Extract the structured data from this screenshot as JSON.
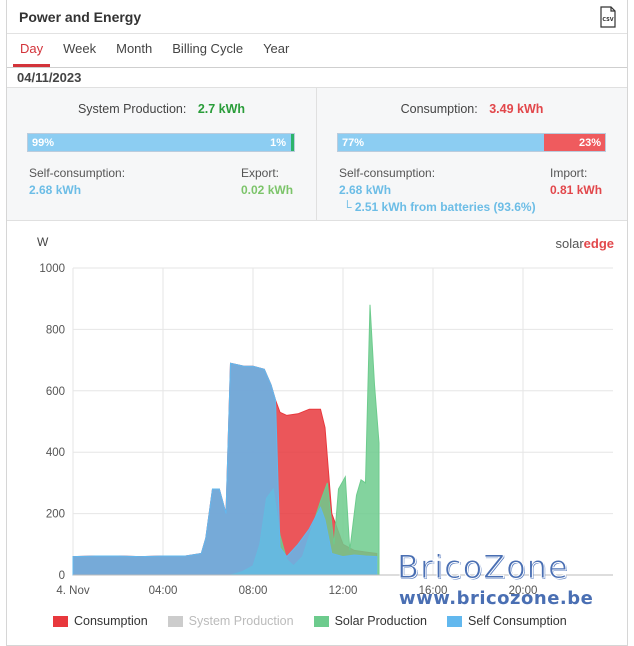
{
  "header": {
    "title": "Power and Energy",
    "csv_icon": "csv-file-icon"
  },
  "tabs": [
    {
      "label": "Day",
      "active": true
    },
    {
      "label": "Week",
      "active": false
    },
    {
      "label": "Month",
      "active": false
    },
    {
      "label": "Billing Cycle",
      "active": false
    },
    {
      "label": "Year",
      "active": false
    }
  ],
  "date": "04/11/2023",
  "production": {
    "label": "System Production:",
    "value": "2.7 kWh",
    "self_pct": "99%",
    "export_pct": "1%",
    "self_fraction": 0.99,
    "self_label": "Self-consumption:",
    "self_value": "2.68 kWh",
    "export_label": "Export:",
    "export_value": "0.02 kWh"
  },
  "consumption": {
    "label": "Consumption:",
    "value": "3.49 kWh",
    "self_pct": "77%",
    "import_pct": "23%",
    "self_fraction": 0.77,
    "self_label": "Self-consumption:",
    "self_value": "2.68 kWh",
    "battery_note": "└ 2.51 kWh from batteries (93.6%)",
    "import_label": "Import:",
    "import_value": "0.81 kWh"
  },
  "colors": {
    "production_green": "#2a9d3a",
    "consumption_red": "#e2474b",
    "self_blue": "#8ccdf2",
    "export_green": "#2db46a",
    "import_red": "#ef5b5e",
    "value_blue": "#6cbde6",
    "value_green": "#7cc46a",
    "value_red": "#e2474b"
  },
  "brand": {
    "solar": "solar",
    "edge": "edge"
  },
  "watermark": {
    "title": "BricoZone",
    "url": "www.bricozone.be"
  },
  "chart_data": {
    "type": "area",
    "ylabel": "W",
    "ylim": [
      0,
      1000
    ],
    "yticks": [
      0,
      200,
      400,
      600,
      800,
      1000
    ],
    "xticks": [
      "4. Nov",
      "04:00",
      "08:00",
      "12:00",
      "16:00",
      "20:00"
    ],
    "xtick_hours": [
      0,
      4,
      8,
      12,
      16,
      20
    ],
    "xlim_hours": [
      0,
      24
    ],
    "series": [
      {
        "name": "Consumption",
        "color": "#e8383d",
        "visible": true,
        "x": [
          0,
          1,
          2,
          3,
          4,
          5,
          5.7,
          5.9,
          6.2,
          6.5,
          6.8,
          7.0,
          7.3,
          7.6,
          8.0,
          8.5,
          8.8,
          9.0,
          9.2,
          9.5,
          10.0,
          10.5,
          11.0,
          11.2,
          11.5,
          12.0,
          12.5,
          13.0,
          13.5
        ],
        "y": [
          60,
          62,
          62,
          60,
          62,
          62,
          70,
          120,
          280,
          280,
          200,
          690,
          685,
          680,
          680,
          670,
          620,
          570,
          530,
          520,
          525,
          540,
          540,
          480,
          200,
          100,
          80,
          75,
          70
        ]
      },
      {
        "name": "System Production",
        "color": "#cccccc",
        "visible": false,
        "x": [],
        "y": []
      },
      {
        "name": "Solar Production",
        "color": "#6dcb8d",
        "visible": true,
        "x": [
          7.0,
          7.5,
          8.0,
          8.3,
          8.6,
          8.9,
          9.2,
          9.5,
          9.8,
          10.2,
          10.6,
          11.0,
          11.3,
          11.6,
          11.8,
          12.1,
          12.3,
          12.6,
          12.8,
          13.0,
          13.2,
          13.4,
          13.6
        ],
        "y": [
          0,
          10,
          30,
          100,
          250,
          280,
          130,
          50,
          30,
          60,
          150,
          240,
          300,
          100,
          280,
          320,
          80,
          260,
          310,
          300,
          880,
          620,
          430
        ]
      },
      {
        "name": "Self Consumption",
        "color": "#62b8ee",
        "visible": true,
        "x": [
          0,
          1,
          2,
          3,
          4,
          5,
          5.7,
          5.9,
          6.2,
          6.5,
          6.8,
          7.0,
          7.3,
          7.6,
          8.0,
          8.5,
          8.8,
          9.0,
          9.2,
          9.5,
          10.0,
          10.5,
          11.0,
          11.2,
          11.5,
          12.0,
          12.5,
          13.0,
          13.5
        ],
        "y": [
          60,
          62,
          62,
          60,
          62,
          62,
          70,
          120,
          280,
          280,
          200,
          690,
          685,
          680,
          680,
          670,
          620,
          570,
          90,
          60,
          100,
          150,
          220,
          180,
          70,
          60,
          65,
          62,
          60
        ]
      }
    ],
    "legend": "bottom",
    "grid": true
  }
}
